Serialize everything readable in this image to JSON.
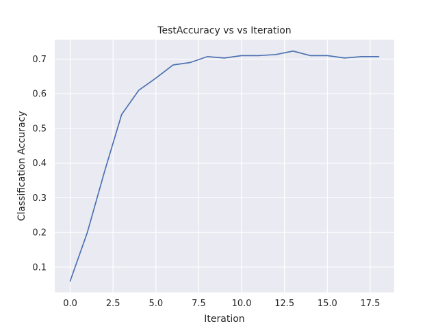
{
  "chart_data": {
    "type": "line",
    "title": "TestAccuracy vs vs Iteration",
    "xlabel": "Iteration",
    "ylabel": "Classification Accuracy",
    "xlim": [
      -0.9,
      18.9
    ],
    "ylim": [
      0.027,
      0.756
    ],
    "xticks": [
      0,
      2.5,
      5,
      7.5,
      10,
      12.5,
      15,
      17.5
    ],
    "xtick_labels": [
      "0.0",
      "2.5",
      "5.0",
      "7.5",
      "10.0",
      "12.5",
      "15.0",
      "17.5"
    ],
    "yticks": [
      0.1,
      0.2,
      0.3,
      0.4,
      0.5,
      0.6,
      0.7
    ],
    "ytick_labels": [
      "0.1",
      "0.2",
      "0.3",
      "0.4",
      "0.5",
      "0.6",
      "0.7"
    ],
    "grid": true,
    "colors": {
      "plot_background": "#eaeaf2",
      "grid": "#ffffff",
      "line": "#4c72b0"
    },
    "x": [
      0,
      1,
      2,
      3,
      4,
      5,
      6,
      7,
      8,
      9,
      10,
      11,
      12,
      13,
      14,
      15,
      16,
      17,
      18
    ],
    "series": [
      {
        "values": [
          0.06,
          0.2,
          0.375,
          0.54,
          0.61,
          0.645,
          0.683,
          0.69,
          0.707,
          0.703,
          0.71,
          0.71,
          0.713,
          0.723,
          0.71,
          0.71,
          0.703,
          0.707,
          0.707
        ]
      }
    ]
  }
}
